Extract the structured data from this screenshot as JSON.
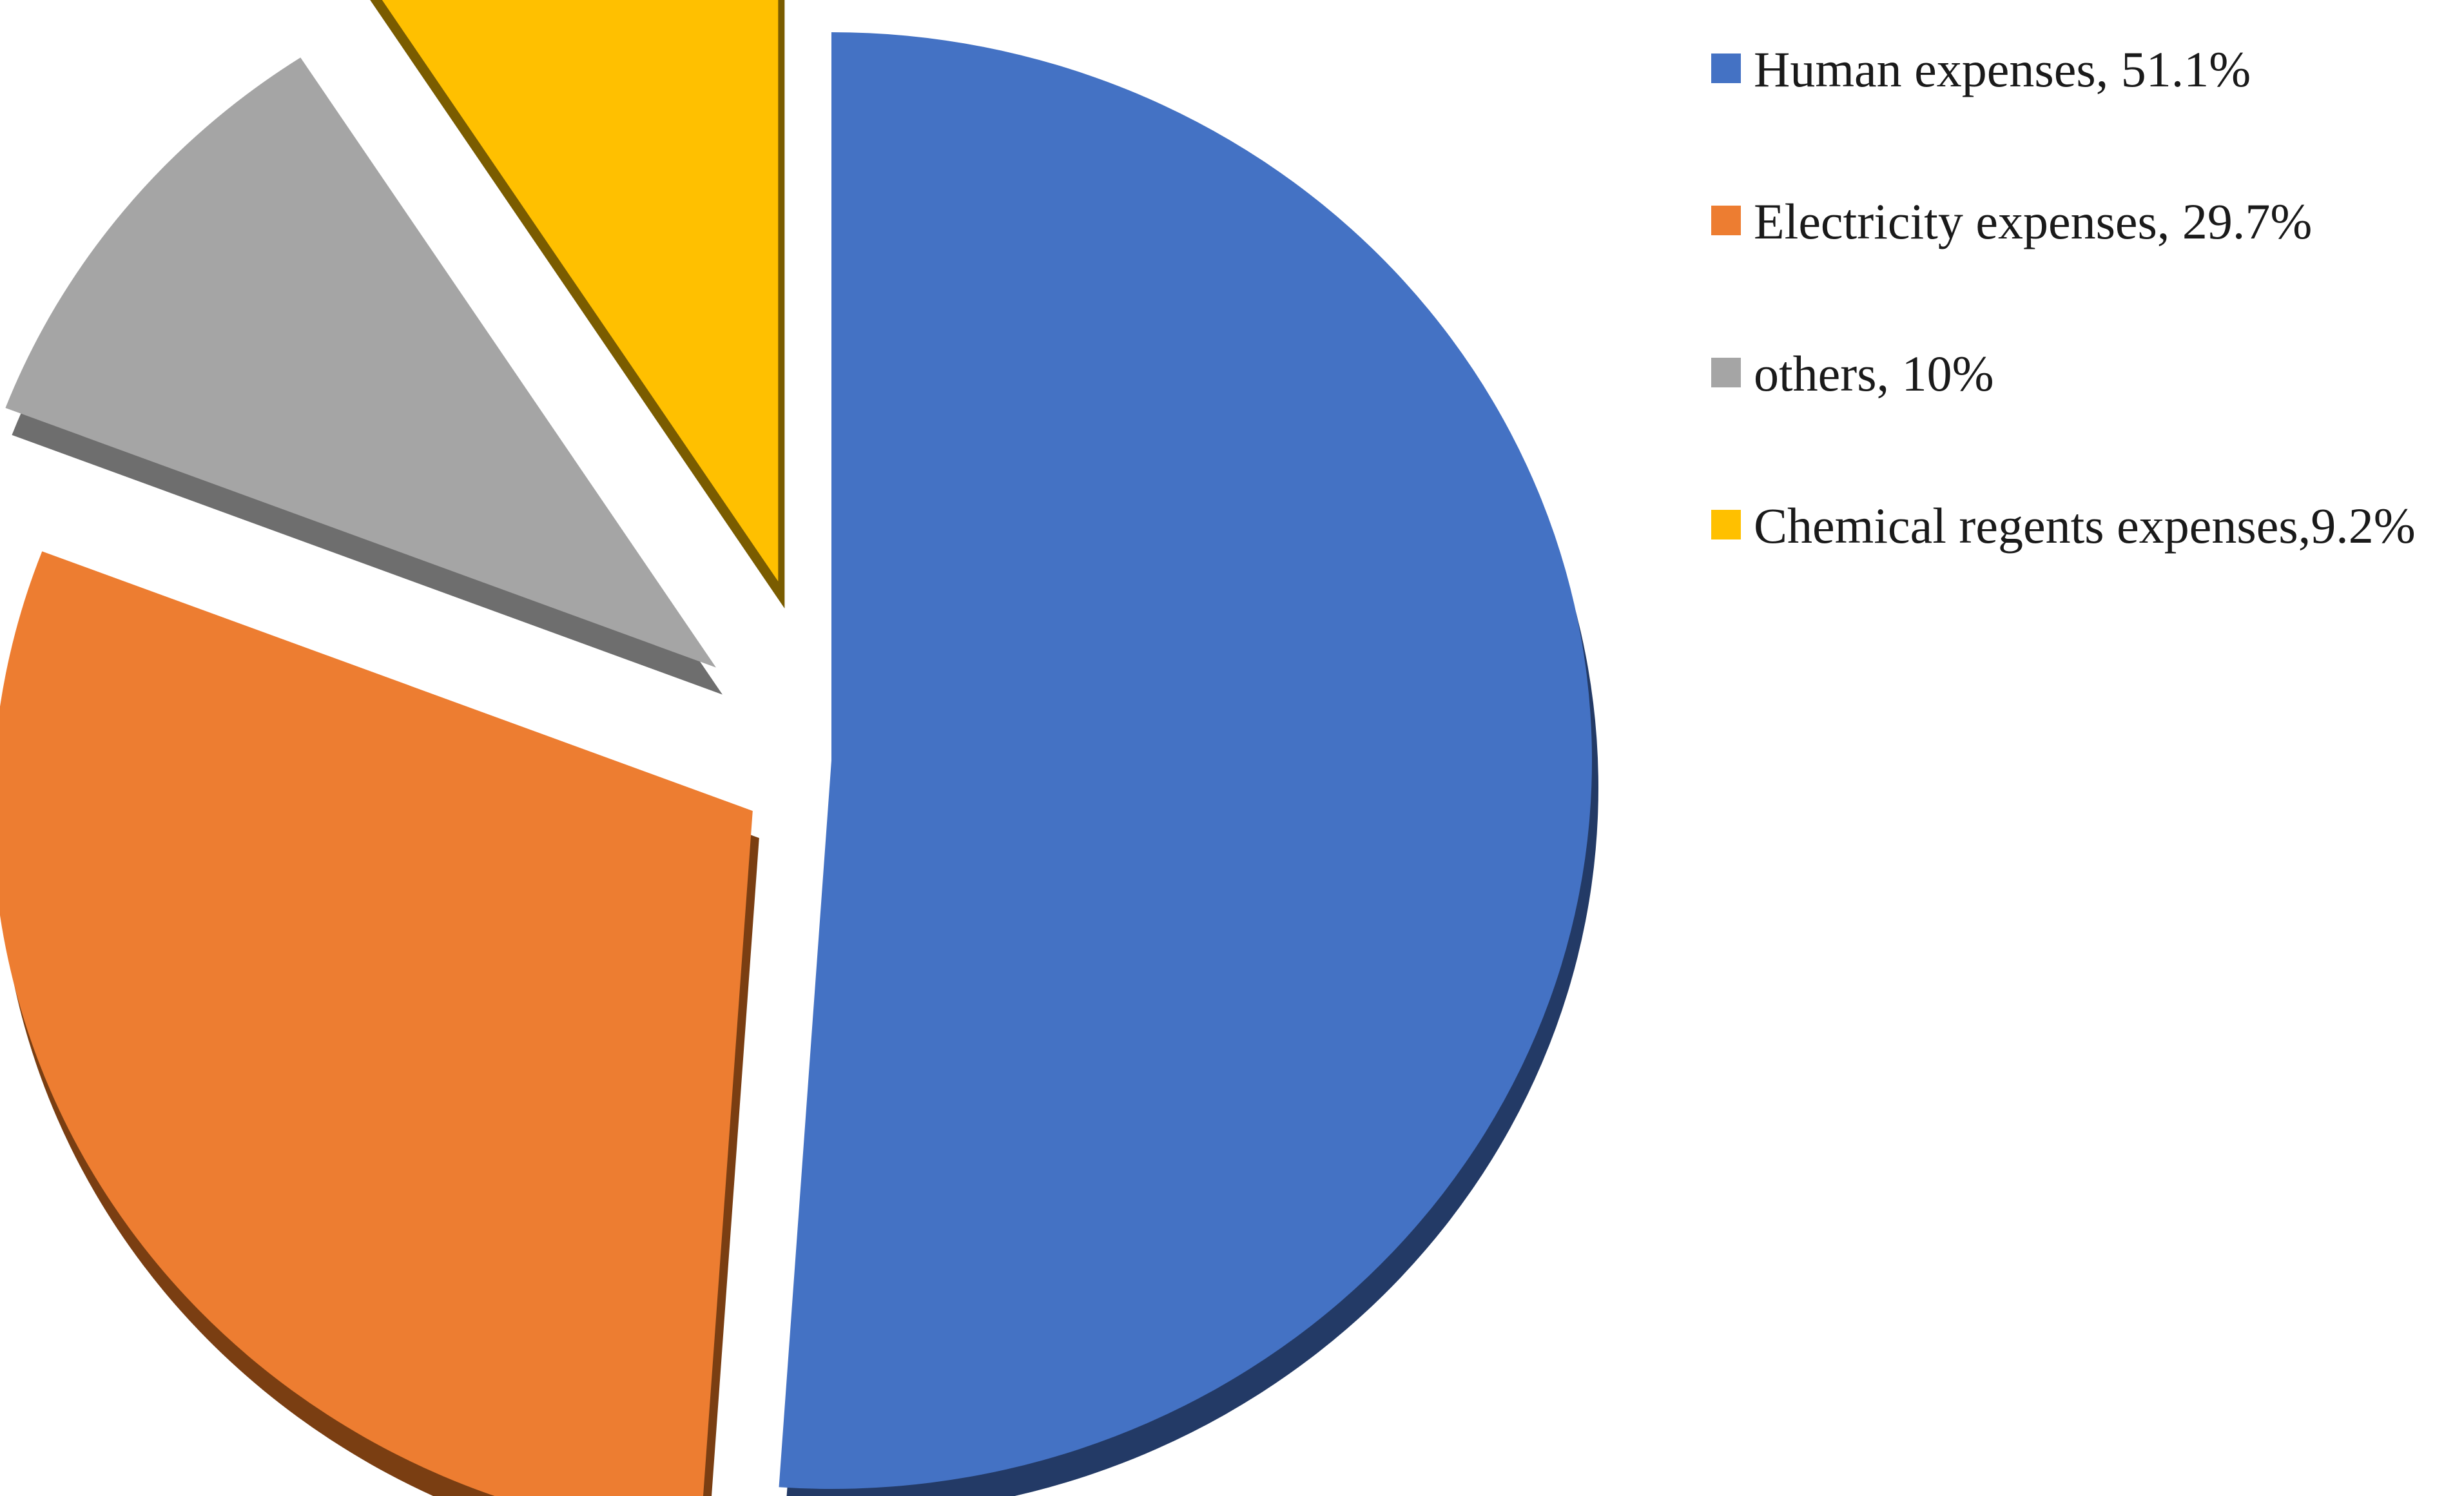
{
  "chart_data": {
    "type": "pie",
    "exploded": true,
    "three_d": true,
    "title": "",
    "legend_position": "right",
    "slices": [
      {
        "label": "Human expenses, 51.1%",
        "value": 51.1,
        "color": "#4472C4",
        "side_color": "#233A66"
      },
      {
        "label": "Electricity expenses, 29.7%",
        "value": 29.7,
        "color": "#ED7D31",
        "side_color": "#7A3E12"
      },
      {
        "label": "others, 10%",
        "value": 10,
        "color": "#A5A5A5",
        "side_color": "#6E6E6E"
      },
      {
        "label": "Chemical regents expenses,9.2%",
        "value": 9.2,
        "color": "#FFC000",
        "side_color": "#7A5C00"
      }
    ]
  }
}
